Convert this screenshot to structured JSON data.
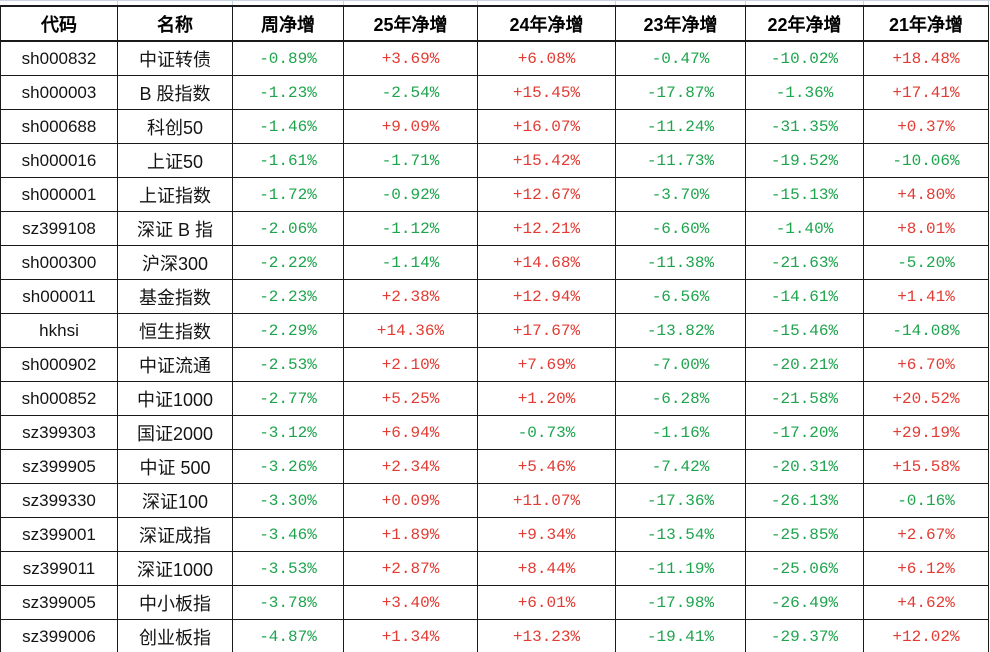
{
  "colors": {
    "positive": "#e23b33",
    "negative": "#1ea44d",
    "border": "#1a1a1a",
    "gridline": "#c8d4e2"
  },
  "table": {
    "headers": [
      "代码",
      "名称",
      "周净增",
      "25年净增",
      "24年净增",
      "23年净增",
      "22年净增",
      "21年净增"
    ],
    "rows": [
      {
        "code": "sh000832",
        "name": "中证转债",
        "values": [
          "-0.89%",
          "+3.69%",
          "+6.08%",
          "-0.47%",
          "-10.02%",
          "+18.48%"
        ]
      },
      {
        "code": "sh000003",
        "name": "B 股指数",
        "values": [
          "-1.23%",
          "-2.54%",
          "+15.45%",
          "-17.87%",
          "-1.36%",
          "+17.41%"
        ]
      },
      {
        "code": "sh000688",
        "name": "科创50",
        "values": [
          "-1.46%",
          "+9.09%",
          "+16.07%",
          "-11.24%",
          "-31.35%",
          "+0.37%"
        ]
      },
      {
        "code": "sh000016",
        "name": "上证50",
        "values": [
          "-1.61%",
          "-1.71%",
          "+15.42%",
          "-11.73%",
          "-19.52%",
          "-10.06%"
        ]
      },
      {
        "code": "sh000001",
        "name": "上证指数",
        "values": [
          "-1.72%",
          "-0.92%",
          "+12.67%",
          "-3.70%",
          "-15.13%",
          "+4.80%"
        ]
      },
      {
        "code": "sz399108",
        "name": "深证 B 指",
        "values": [
          "-2.06%",
          "-1.12%",
          "+12.21%",
          "-6.60%",
          "-1.40%",
          "+8.01%"
        ]
      },
      {
        "code": "sh000300",
        "name": "沪深300",
        "values": [
          "-2.22%",
          "-1.14%",
          "+14.68%",
          "-11.38%",
          "-21.63%",
          "-5.20%"
        ]
      },
      {
        "code": "sh000011",
        "name": "基金指数",
        "values": [
          "-2.23%",
          "+2.38%",
          "+12.94%",
          "-6.56%",
          "-14.61%",
          "+1.41%"
        ]
      },
      {
        "code": "hkhsi",
        "name": "恒生指数",
        "values": [
          "-2.29%",
          "+14.36%",
          "+17.67%",
          "-13.82%",
          "-15.46%",
          "-14.08%"
        ]
      },
      {
        "code": "sh000902",
        "name": "中证流通",
        "values": [
          "-2.53%",
          "+2.10%",
          "+7.69%",
          "-7.00%",
          "-20.21%",
          "+6.70%"
        ]
      },
      {
        "code": "sh000852",
        "name": "中证1000",
        "values": [
          "-2.77%",
          "+5.25%",
          "+1.20%",
          "-6.28%",
          "-21.58%",
          "+20.52%"
        ]
      },
      {
        "code": "sz399303",
        "name": "国证2000",
        "values": [
          "-3.12%",
          "+6.94%",
          "-0.73%",
          "-1.16%",
          "-17.20%",
          "+29.19%"
        ]
      },
      {
        "code": "sz399905",
        "name": "中证 500",
        "values": [
          "-3.26%",
          "+2.34%",
          "+5.46%",
          "-7.42%",
          "-20.31%",
          "+15.58%"
        ]
      },
      {
        "code": "sz399330",
        "name": "深证100",
        "values": [
          "-3.30%",
          "+0.09%",
          "+11.07%",
          "-17.36%",
          "-26.13%",
          "-0.16%"
        ]
      },
      {
        "code": "sz399001",
        "name": "深证成指",
        "values": [
          "-3.46%",
          "+1.89%",
          "+9.34%",
          "-13.54%",
          "-25.85%",
          "+2.67%"
        ]
      },
      {
        "code": "sz399011",
        "name": "深证1000",
        "values": [
          "-3.53%",
          "+2.87%",
          "+8.44%",
          "-11.19%",
          "-25.06%",
          "+6.12%"
        ]
      },
      {
        "code": "sz399005",
        "name": "中小板指",
        "values": [
          "-3.78%",
          "+3.40%",
          "+6.01%",
          "-17.98%",
          "-26.49%",
          "+4.62%"
        ]
      },
      {
        "code": "sz399006",
        "name": "创业板指",
        "values": [
          "-4.87%",
          "+1.34%",
          "+13.23%",
          "-19.41%",
          "-29.37%",
          "+12.02%"
        ]
      }
    ]
  }
}
